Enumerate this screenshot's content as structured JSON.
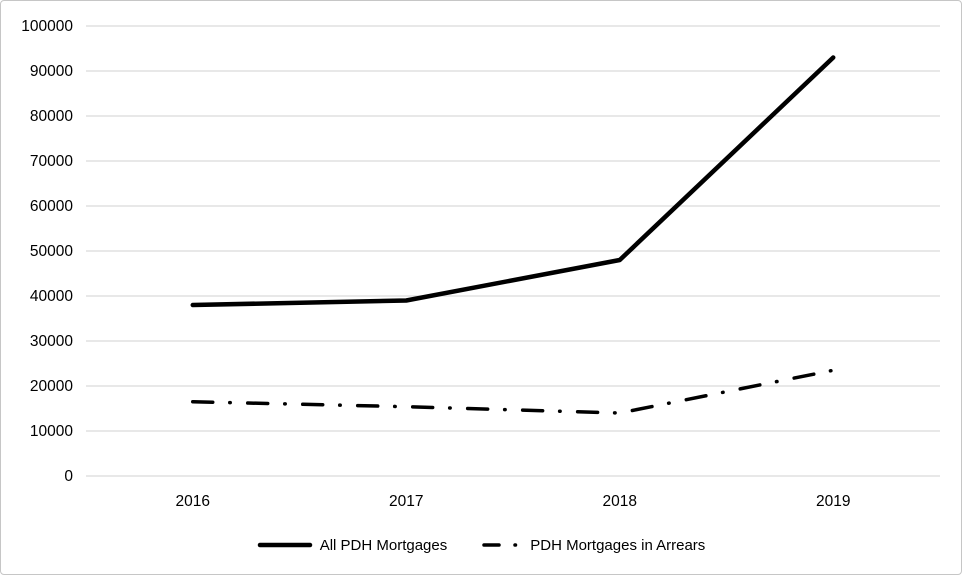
{
  "chart_data": {
    "type": "line",
    "title": "",
    "xlabel": "",
    "ylabel": "",
    "categories": [
      "2016",
      "2017",
      "2018",
      "2019"
    ],
    "series": [
      {
        "name": "All PDH Mortgages",
        "values": [
          38000,
          39000,
          48000,
          93000
        ],
        "style": "solid",
        "color": "#000000"
      },
      {
        "name": "PDH Mortgages in Arrears",
        "values": [
          16500,
          15400,
          14000,
          23500
        ],
        "style": "dash-dot",
        "color": "#000000"
      }
    ],
    "ylim": [
      0,
      100000
    ],
    "yticks": [
      0,
      10000,
      20000,
      30000,
      40000,
      50000,
      60000,
      70000,
      80000,
      90000,
      100000
    ],
    "grid": true,
    "legend_position": "bottom",
    "colors": {
      "gridline": "#d9d9d9",
      "axis_line": "#d9d9d9",
      "tick_label": "#000000",
      "background": "#ffffff",
      "frame_border": "#c6c6c6"
    }
  }
}
